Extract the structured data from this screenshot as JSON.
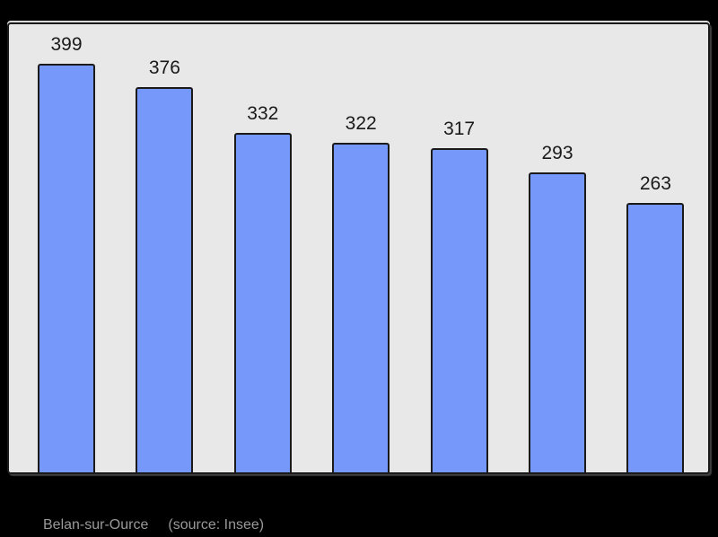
{
  "chart_data": {
    "type": "bar",
    "values": [
      399,
      376,
      332,
      322,
      317,
      293,
      263
    ],
    "labels": [
      "399",
      "376",
      "332",
      "322",
      "317",
      "293",
      "263"
    ],
    "title": "",
    "xlabel": "",
    "ylabel": "",
    "ylim": [
      0,
      440
    ],
    "grid": false,
    "legend": null,
    "axes_visible": false,
    "value_labels_position": "above-bar"
  },
  "caption": {
    "title": "Belan-sur-Ource",
    "source": "(source: Insee)"
  },
  "colors": {
    "page_bg": "#000000",
    "panel_bg": "#e8e8e8",
    "panel_border": "#1a1a1a",
    "bar_fill": "#7598fa",
    "bar_border": "#1a1a1a",
    "label_color": "#1a1a1a",
    "caption_color": "#999999"
  }
}
